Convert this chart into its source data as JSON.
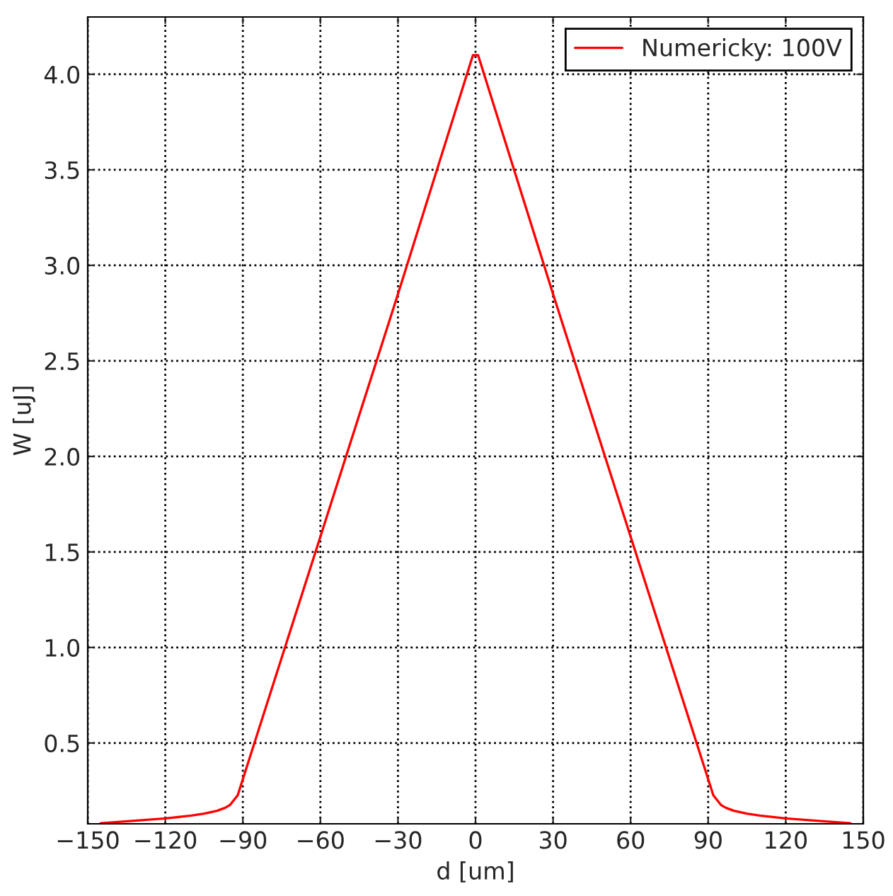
{
  "chart_data": {
    "type": "line",
    "xlabel": "d [um]",
    "ylabel": "W [uJ]",
    "series": [
      {
        "name": "Numericky: 100V",
        "color": "#ff0000",
        "x": [
          -145,
          -130,
          -120,
          -110,
          -105,
          -100,
          -97,
          -95,
          -92,
          -60,
          -30,
          -1,
          1,
          30,
          60,
          92,
          95,
          97,
          100,
          105,
          110,
          120,
          130,
          145
        ],
        "values": [
          0.08,
          0.095,
          0.105,
          0.12,
          0.13,
          0.145,
          0.16,
          0.175,
          0.226,
          1.58,
          2.85,
          4.1,
          4.1,
          2.85,
          1.58,
          0.226,
          0.175,
          0.16,
          0.145,
          0.13,
          0.12,
          0.105,
          0.095,
          0.08
        ]
      }
    ],
    "xlim": [
      -150,
      150
    ],
    "xticks": [
      -150,
      -120,
      -90,
      -60,
      -30,
      0,
      30,
      60,
      90,
      120,
      150
    ],
    "ylim": [
      0.077,
      4.3
    ],
    "yticks": [
      0.5,
      {
        "value": 1,
        "label": "1.0"
      },
      1.5,
      {
        "value": 2,
        "label": "2.0"
      },
      2.5,
      {
        "value": 3,
        "label": "3.0"
      },
      3.5,
      {
        "value": 4,
        "label": "4.0"
      }
    ],
    "grid": true,
    "legend": "top right",
    "line_style": "solid",
    "marker": "none"
  }
}
